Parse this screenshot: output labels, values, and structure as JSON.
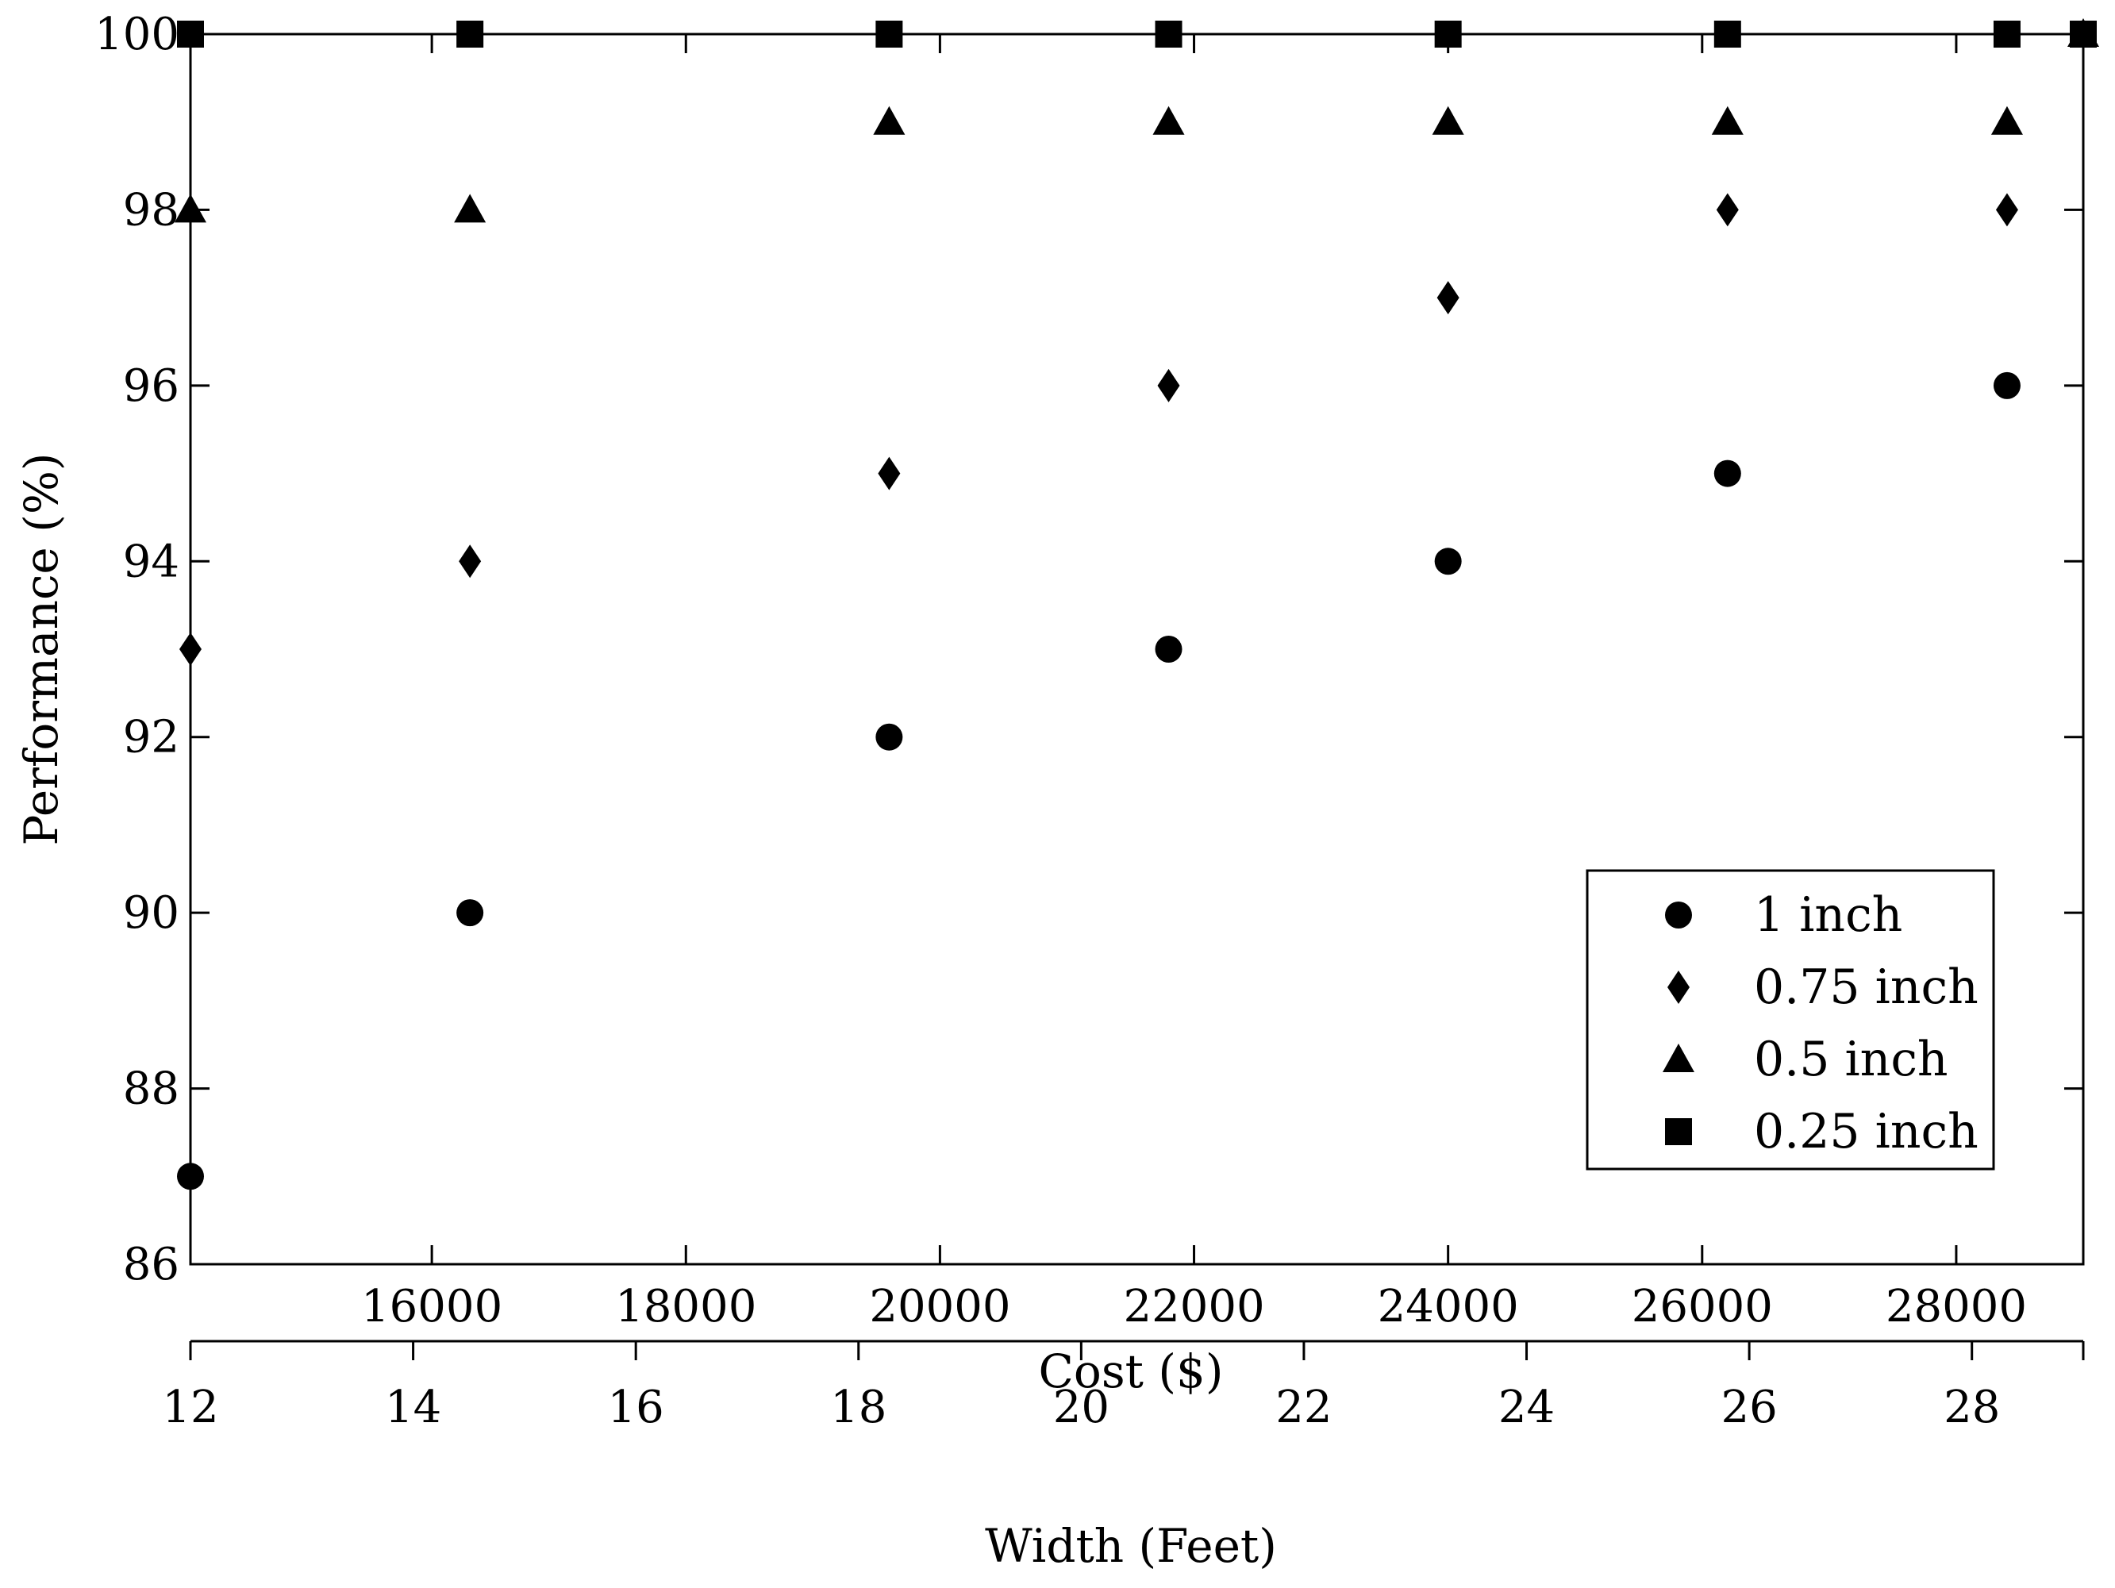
{
  "chart_data": {
    "type": "scatter",
    "xlabel": "Cost ($)",
    "x2label": "Width (Feet)",
    "ylabel": "Performance (%)",
    "xlim": [
      14100,
      29000
    ],
    "x2lim": [
      12,
      29
    ],
    "ylim": [
      86,
      100
    ],
    "xticks": [
      16000,
      18000,
      20000,
      22000,
      24000,
      26000,
      28000
    ],
    "x2ticks": [
      12,
      14,
      16,
      18,
      20,
      22,
      24,
      26,
      28
    ],
    "yticks": [
      86,
      88,
      90,
      92,
      94,
      96,
      98,
      100
    ],
    "legend_position": "lower-right",
    "grid": false,
    "series": [
      {
        "name": "1 inch",
        "marker": "circle",
        "x": [
          14100,
          16300,
          19600,
          21800,
          24000,
          26200,
          28400
        ],
        "y": [
          87,
          90,
          92,
          93,
          94,
          95,
          96
        ]
      },
      {
        "name": "0.75 inch",
        "marker": "diamond",
        "x": [
          14100,
          16300,
          19600,
          21800,
          24000,
          26200,
          28400
        ],
        "y": [
          93,
          94,
          95,
          96,
          97,
          98,
          98
        ]
      },
      {
        "name": "0.5 inch",
        "marker": "triangle",
        "x": [
          14100,
          16300,
          19600,
          21800,
          24000,
          26200,
          28400,
          29000
        ],
        "y": [
          98,
          98,
          99,
          99,
          99,
          99,
          99,
          100
        ]
      },
      {
        "name": "0.25 inch",
        "marker": "square",
        "x": [
          14100,
          16300,
          19600,
          21800,
          24000,
          26200,
          28400,
          29000
        ],
        "y": [
          100,
          100,
          100,
          100,
          100,
          100,
          100,
          100
        ]
      }
    ]
  }
}
